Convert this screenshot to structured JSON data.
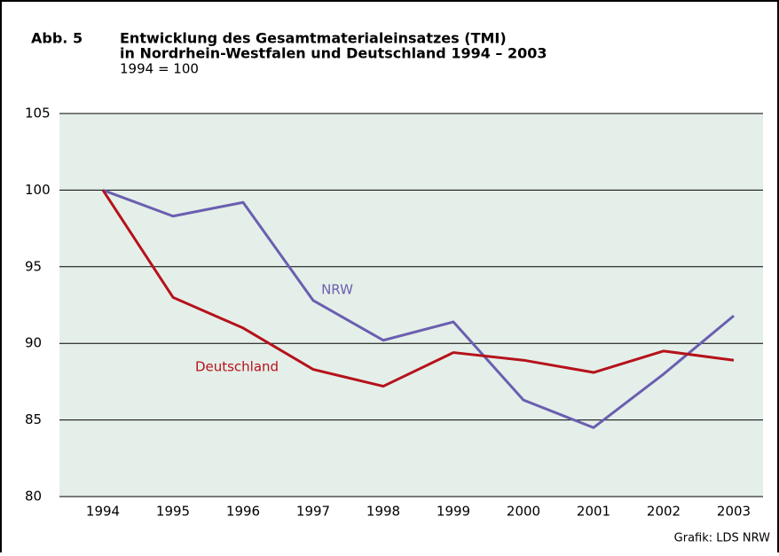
{
  "chart_data": {
    "type": "line",
    "figure_label": "Abb. 5",
    "title": [
      "Entwicklung des Gesamtmaterialeinsatzes (TMI)",
      "in Nordrhein-Westfalen und Deutschland 1994 – 2003"
    ],
    "subtitle": "1994 = 100",
    "source": "Grafik: LDS NRW",
    "categories": [
      "1994",
      "1995",
      "1996",
      "1997",
      "1998",
      "1999",
      "2000",
      "2001",
      "2002",
      "2003"
    ],
    "series": [
      {
        "name": "NRW",
        "color": "#6a5fb0",
        "values": [
          100,
          98.3,
          99.2,
          92.8,
          90.2,
          91.4,
          86.3,
          84.5,
          88.0,
          91.8
        ]
      },
      {
        "name": "Deutschland",
        "color": "#b5121b",
        "values": [
          100,
          93.0,
          91.0,
          88.3,
          87.2,
          89.4,
          88.9,
          88.1,
          89.5,
          88.9
        ]
      }
    ],
    "ylim": [
      80,
      105
    ],
    "yticks": [
      80,
      85,
      90,
      95,
      100,
      105
    ],
    "grid": true
  }
}
